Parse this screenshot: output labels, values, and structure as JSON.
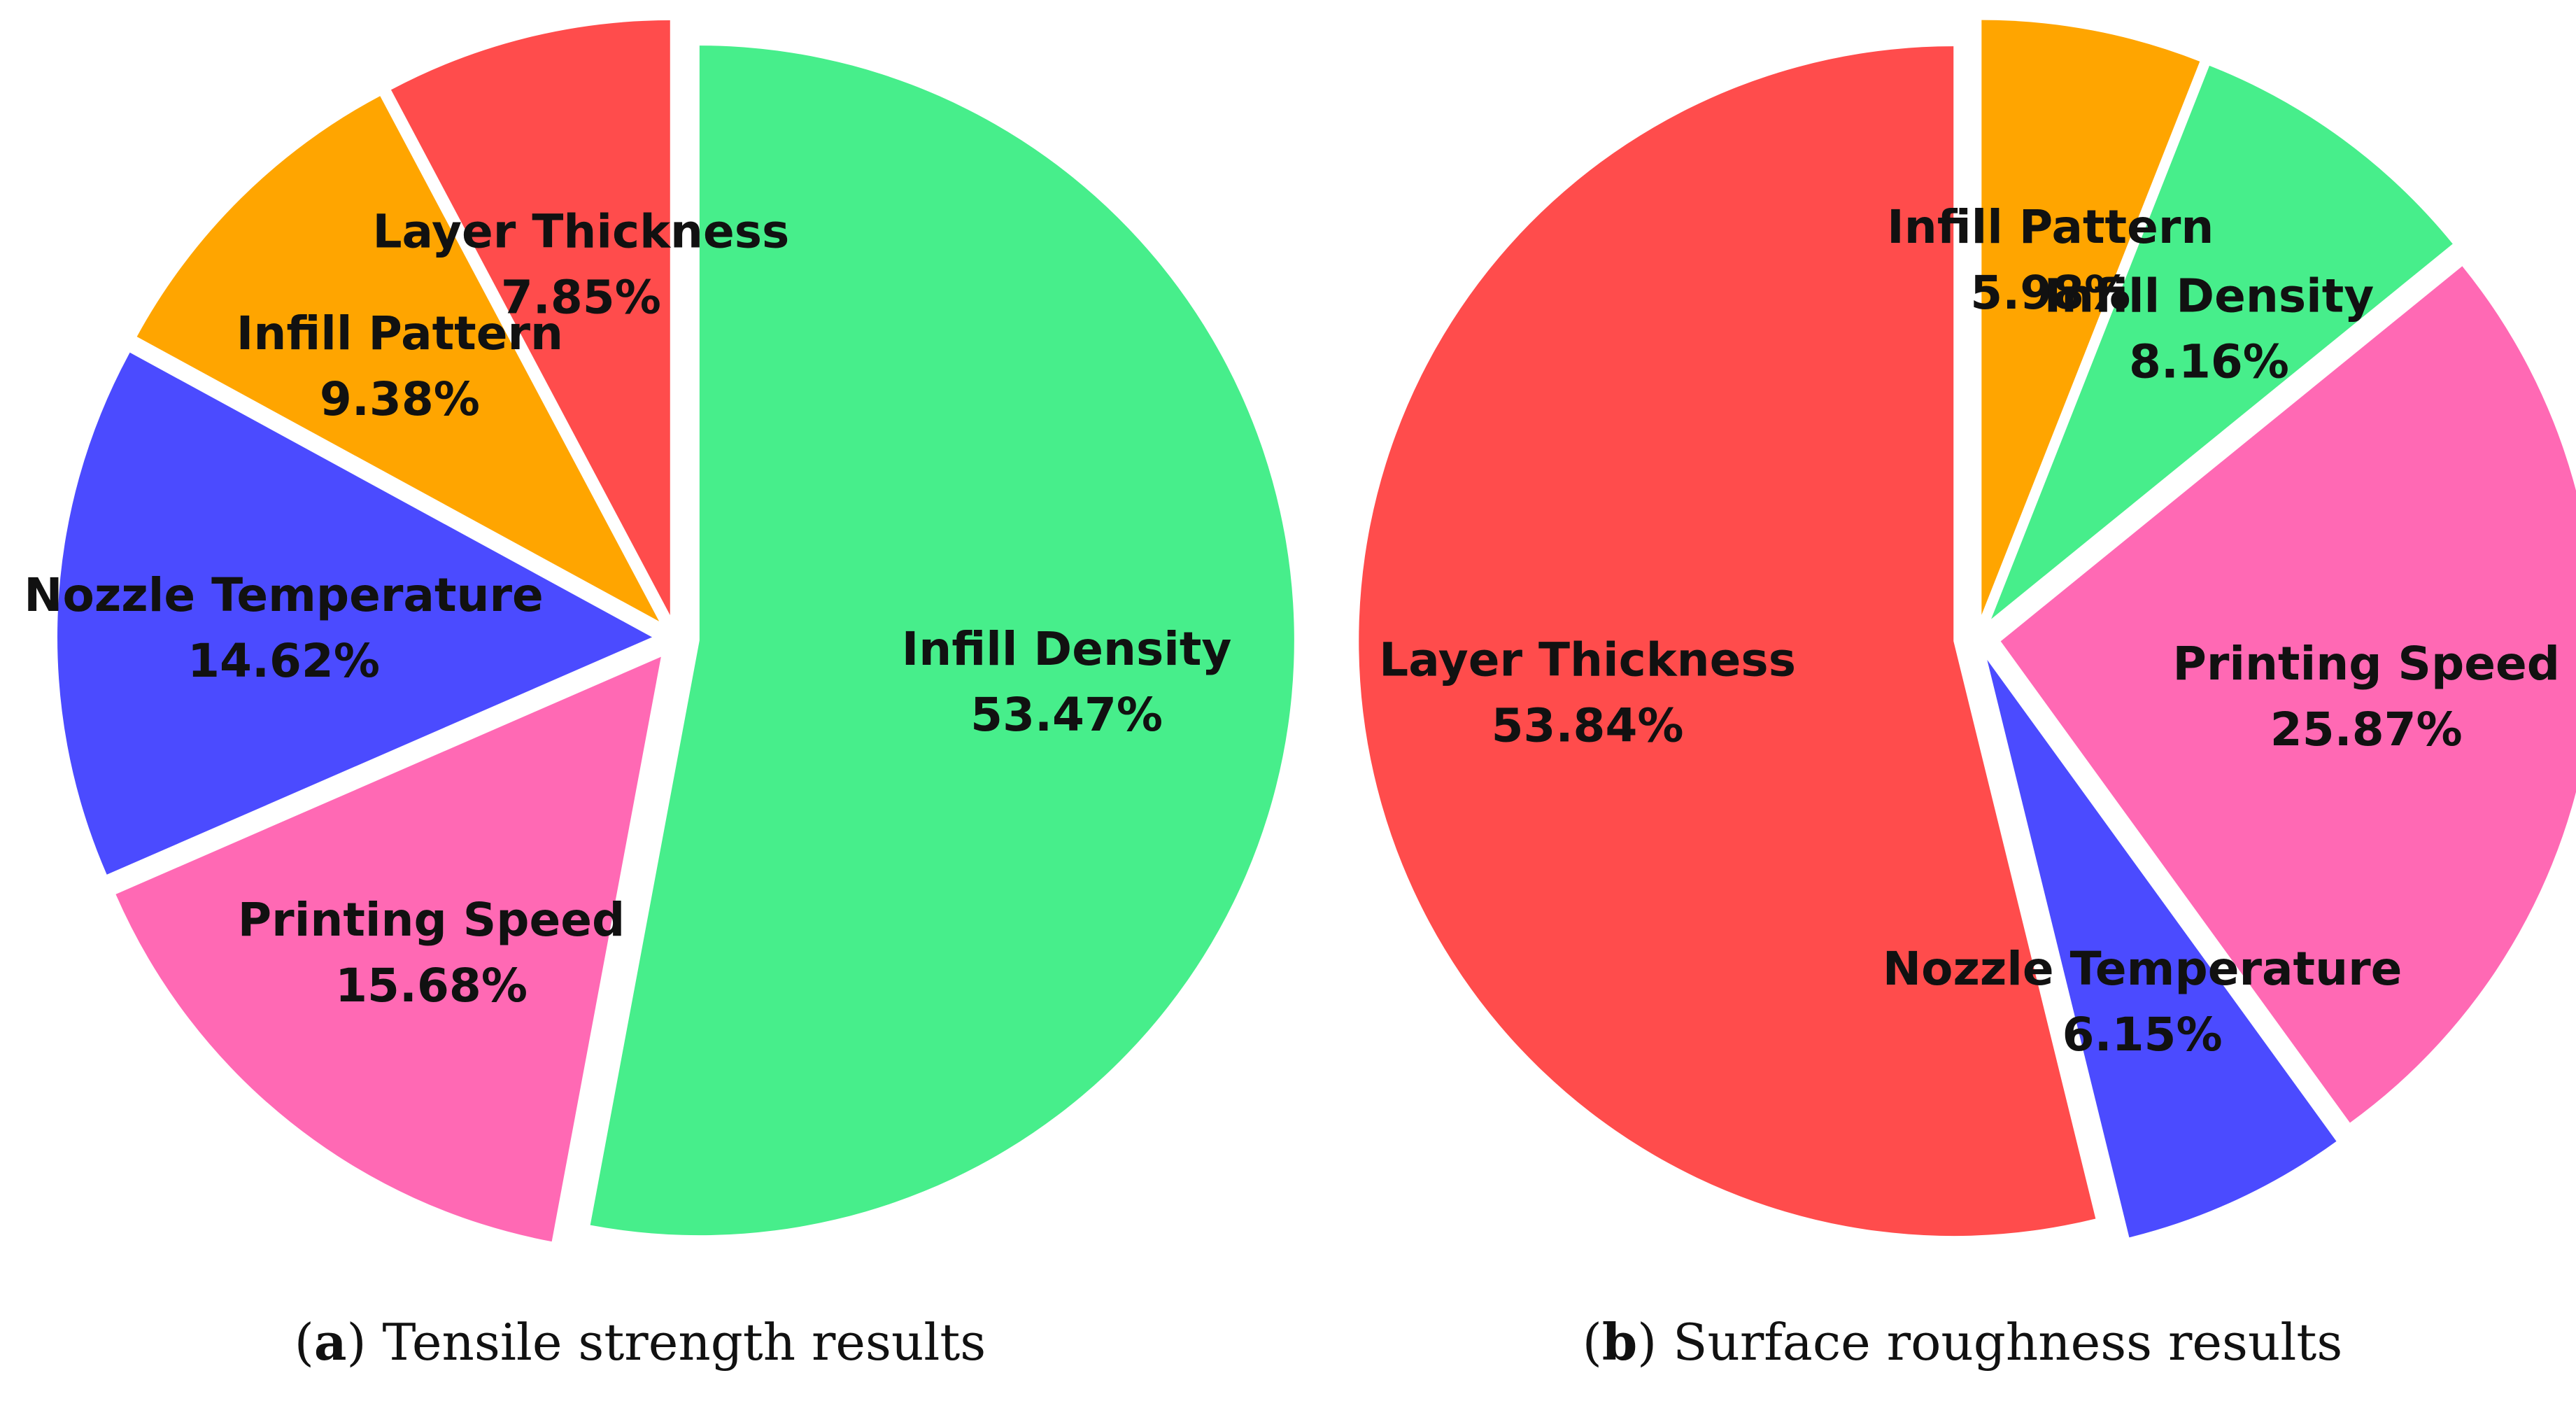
{
  "chart_data": [
    {
      "type": "pie",
      "title": "Tensile strength results",
      "panel_tag": "a",
      "slices": [
        {
          "label": "Infill Density",
          "value": 53.47,
          "value_label": "53.47%",
          "color": "#47EE8B"
        },
        {
          "label": "Printing Speed",
          "value": 15.68,
          "value_label": "15.68%",
          "color": "#FF69B4"
        },
        {
          "label": "Nozzle Temperature",
          "value": 14.62,
          "value_label": "14.62%",
          "color": "#4B4BFF"
        },
        {
          "label": "Infill Pattern",
          "value": 9.38,
          "value_label": "9.38%",
          "color": "#FFA500"
        },
        {
          "label": "Layer Thickness",
          "value": 7.85,
          "value_label": "7.85%",
          "color": "#FF4C4C"
        }
      ],
      "start_angle_deg": 0,
      "direction": "clockwise",
      "exploded": true
    },
    {
      "type": "pie",
      "title": "Surface roughness results",
      "panel_tag": "b",
      "slices": [
        {
          "label": "Infill Pattern",
          "value": 5.98,
          "value_label": "5.98%",
          "color": "#FFA500"
        },
        {
          "label": "Infill Density",
          "value": 8.16,
          "value_label": "8.16%",
          "color": "#47EE8B"
        },
        {
          "label": "Printing Speed",
          "value": 25.87,
          "value_label": "25.87%",
          "color": "#FF69B4"
        },
        {
          "label": "Nozzle Temperature",
          "value": 6.15,
          "value_label": "6.15%",
          "color": "#4B4BFF"
        },
        {
          "label": "Layer Thickness",
          "value": 53.84,
          "value_label": "53.84%",
          "color": "#FF4C4C"
        }
      ],
      "start_angle_deg": 0,
      "direction": "clockwise",
      "exploded": true
    }
  ]
}
